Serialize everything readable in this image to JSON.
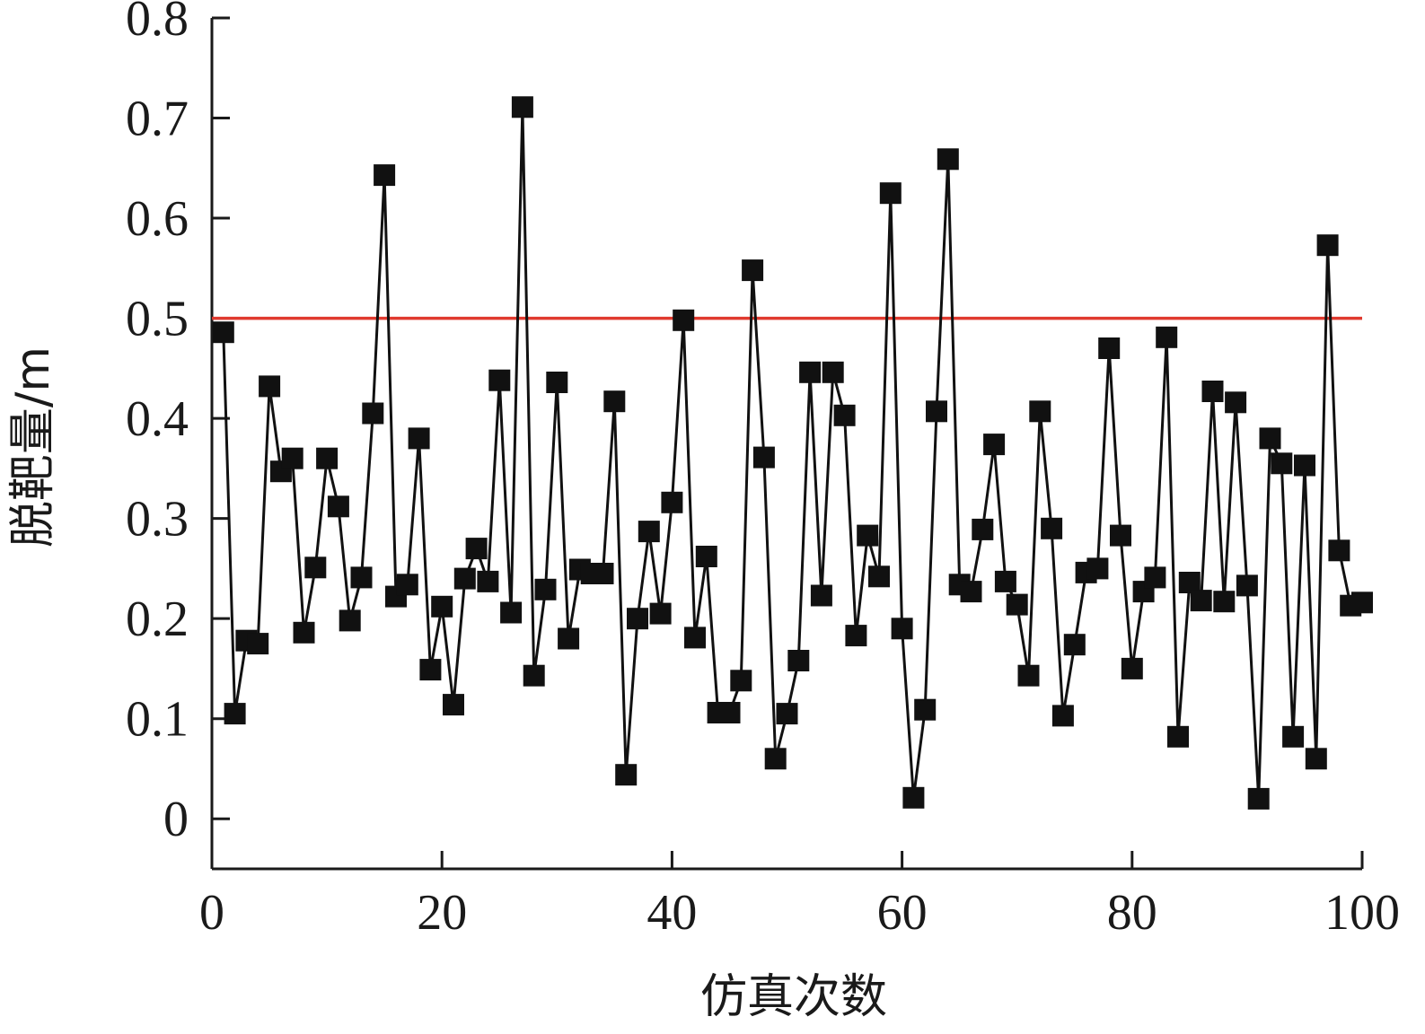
{
  "chart_data": {
    "type": "line",
    "title": "",
    "xlabel": "仿真次数",
    "ylabel": "脱靶量/m",
    "xlim": [
      0,
      100
    ],
    "ylim": [
      -0.05,
      0.8
    ],
    "xticks": [
      0,
      20,
      40,
      60,
      80,
      100
    ],
    "yticks": [
      0,
      0.1,
      0.2,
      0.3,
      0.4,
      0.5,
      0.6,
      0.7,
      0.8
    ],
    "xtick_labels": [
      "0",
      "20",
      "40",
      "60",
      "80",
      "100"
    ],
    "ytick_labels": [
      "0",
      "0.1",
      "0.2",
      "0.3",
      "0.4",
      "0.5",
      "0.6",
      "0.7",
      "0.8"
    ],
    "grid": false,
    "legend": "none",
    "threshold": {
      "y": 0.5,
      "color": "#e03a2f"
    },
    "series": [
      {
        "color": "#111111",
        "marker": "square",
        "x": [
          1,
          2,
          3,
          4,
          5,
          6,
          7,
          8,
          9,
          10,
          11,
          12,
          13,
          14,
          15,
          16,
          17,
          18,
          19,
          20,
          21,
          22,
          23,
          24,
          25,
          26,
          27,
          28,
          29,
          30,
          31,
          32,
          33,
          34,
          35,
          36,
          37,
          38,
          39,
          40,
          41,
          42,
          43,
          44,
          45,
          46,
          47,
          48,
          49,
          50,
          51,
          52,
          53,
          54,
          55,
          56,
          57,
          58,
          59,
          60,
          61,
          62,
          63,
          64,
          65,
          66,
          67,
          68,
          69,
          70,
          71,
          72,
          73,
          74,
          75,
          76,
          77,
          78,
          79,
          80,
          81,
          82,
          83,
          84,
          85,
          86,
          87,
          88,
          89,
          90,
          91,
          92,
          93,
          94,
          95,
          96,
          97,
          98,
          99,
          100
        ],
        "values": [
          0.486,
          0.105,
          0.178,
          0.175,
          0.432,
          0.347,
          0.36,
          0.186,
          0.251,
          0.36,
          0.312,
          0.198,
          0.241,
          0.405,
          0.643,
          0.222,
          0.234,
          0.38,
          0.149,
          0.212,
          0.114,
          0.24,
          0.27,
          0.237,
          0.438,
          0.206,
          0.711,
          0.143,
          0.229,
          0.436,
          0.18,
          0.249,
          0.245,
          0.245,
          0.417,
          0.044,
          0.2,
          0.287,
          0.205,
          0.316,
          0.498,
          0.181,
          0.262,
          0.106,
          0.106,
          0.138,
          0.548,
          0.361,
          0.06,
          0.105,
          0.158,
          0.446,
          0.223,
          0.446,
          0.403,
          0.183,
          0.283,
          0.242,
          0.625,
          0.19,
          0.021,
          0.109,
          0.407,
          0.659,
          0.234,
          0.227,
          0.289,
          0.374,
          0.237,
          0.214,
          0.143,
          0.407,
          0.29,
          0.103,
          0.174,
          0.246,
          0.25,
          0.47,
          0.283,
          0.15,
          0.227,
          0.241,
          0.481,
          0.082,
          0.236,
          0.218,
          0.427,
          0.217,
          0.416,
          0.233,
          0.02,
          0.38,
          0.355,
          0.082,
          0.353,
          0.06,
          0.573,
          0.268,
          0.213,
          0.216
        ]
      }
    ]
  }
}
